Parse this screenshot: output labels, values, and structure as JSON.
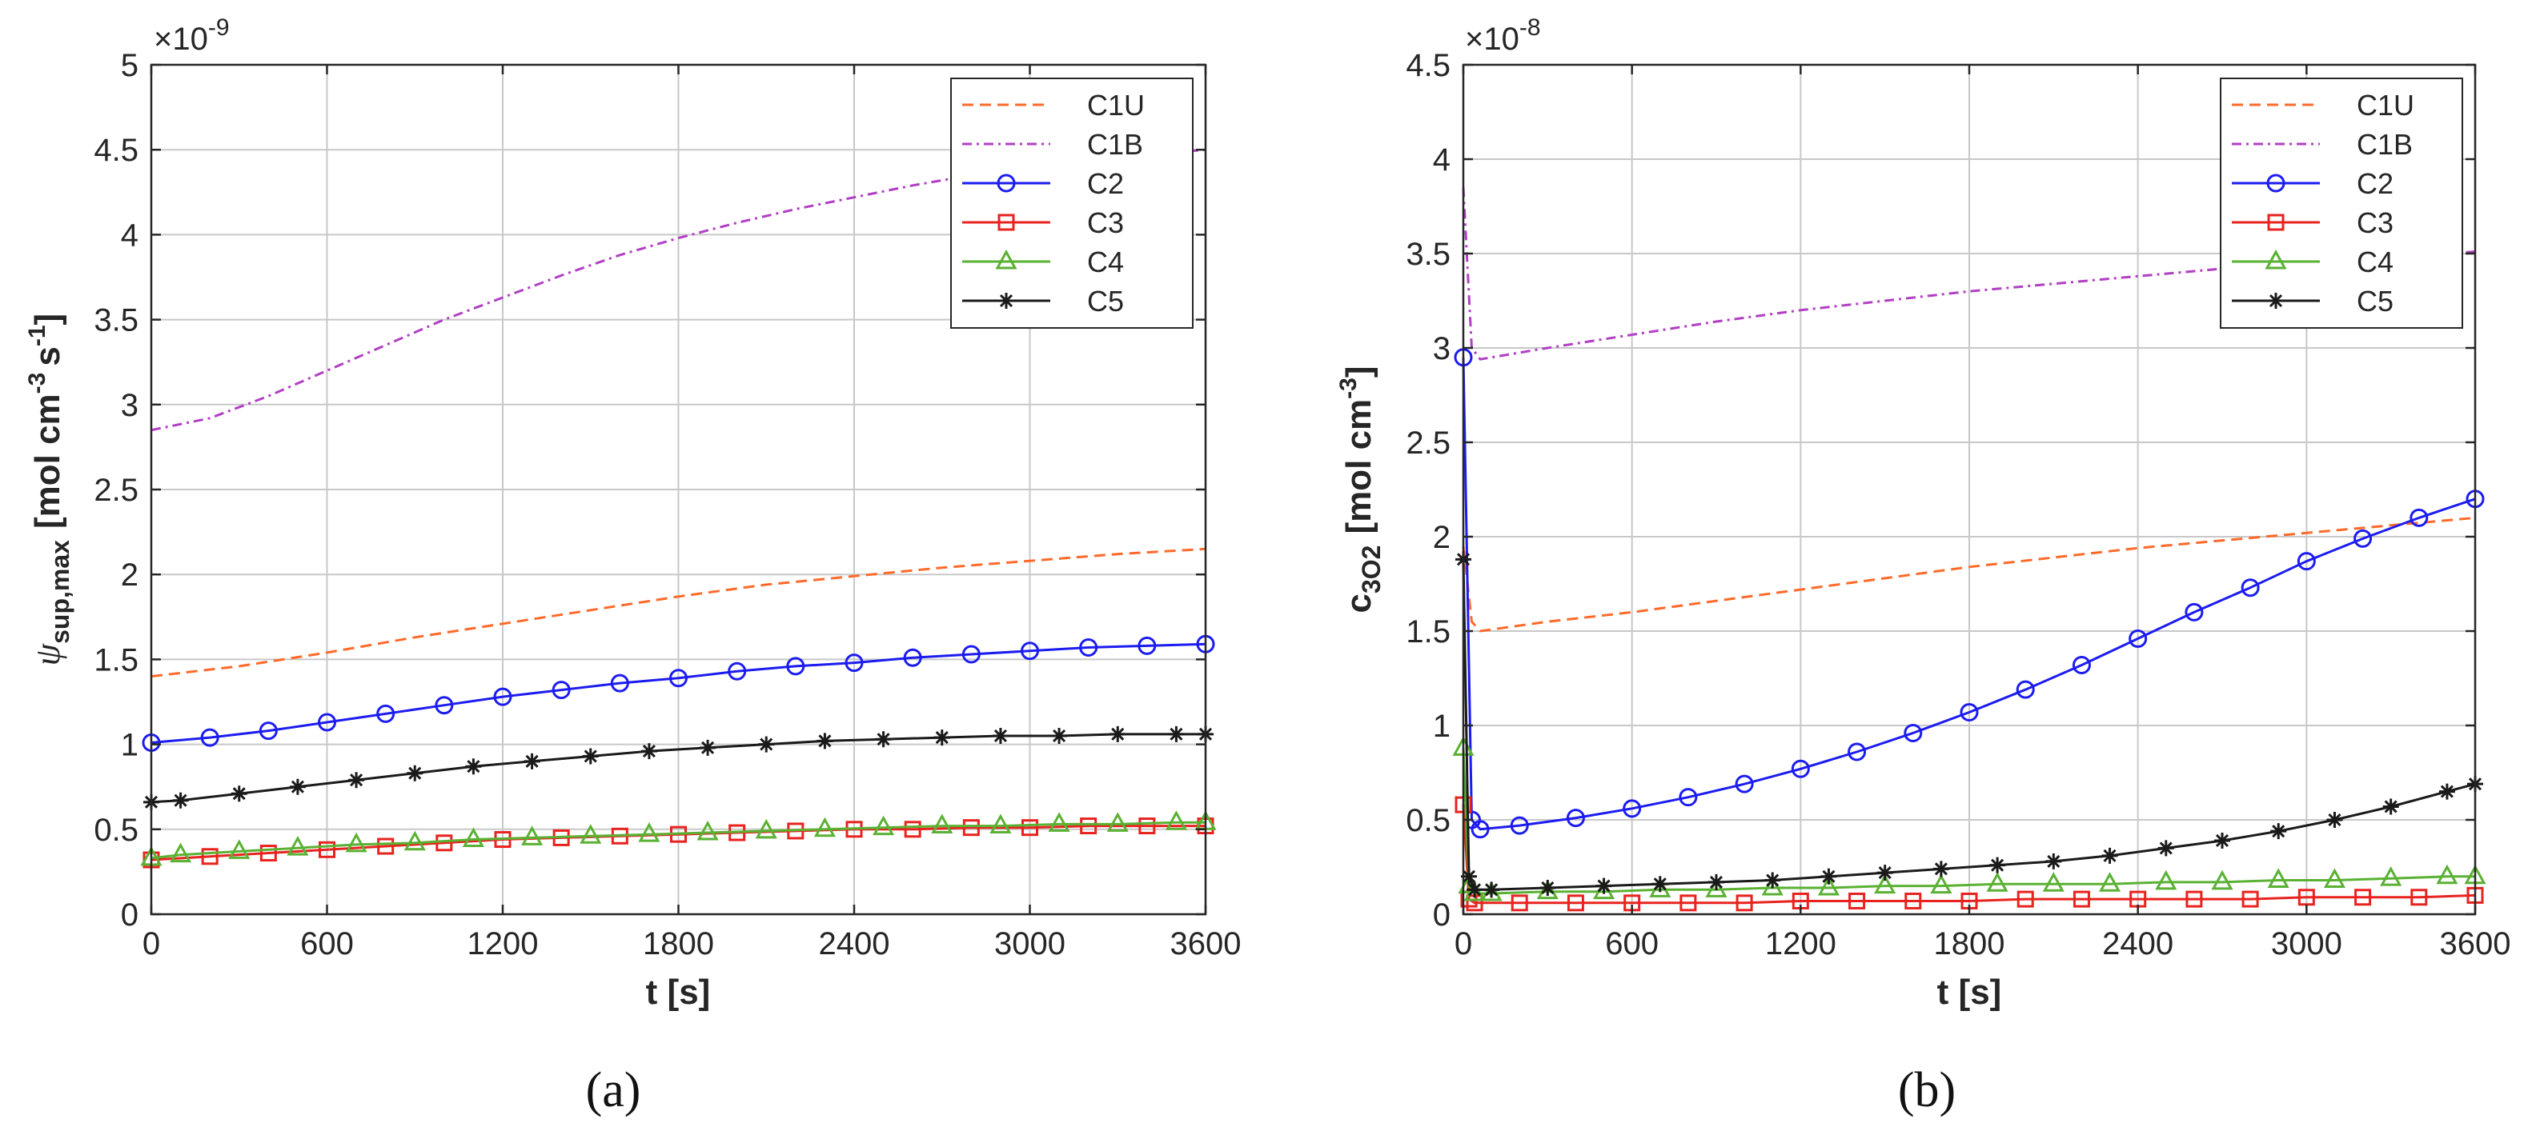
{
  "figure": {
    "panel_labels": [
      "(a)",
      "(b)"
    ]
  },
  "chart_data": [
    {
      "type": "line",
      "panel": "(a)",
      "title": "",
      "xlabel": "t [s]",
      "ylabel_symbol": "ψ",
      "ylabel_sub": "sup,max",
      "ylabel_main": "[mol cm",
      "ylabel_exp1": "-3",
      "ylabel_mid": "s",
      "ylabel_exp2": "-1",
      "ylabel_end": "]",
      "multiplier_base": "×10",
      "multiplier_exp": "-9",
      "xlim": [
        0,
        3600
      ],
      "ylim": [
        0,
        5
      ],
      "xticks": [
        0,
        600,
        1200,
        1800,
        2400,
        3000,
        3600
      ],
      "xtick_labels": [
        "0",
        "600",
        "1200",
        "1800",
        "2400",
        "3000",
        "3600"
      ],
      "yticks": [
        0,
        0.5,
        1,
        1.5,
        2,
        2.5,
        3,
        3.5,
        4,
        4.5,
        5
      ],
      "ytick_labels": [
        "0",
        "0.5",
        "1",
        "1.5",
        "2",
        "2.5",
        "3",
        "3.5",
        "4",
        "4.5",
        "5"
      ],
      "grid": true,
      "legend": "top-right",
      "series": [
        {
          "name": "C1U",
          "color": "#ff6a2a",
          "style": "dashed",
          "marker": "none",
          "x": [
            0,
            300,
            600,
            900,
            1200,
            1500,
            1800,
            2100,
            2400,
            2700,
            3000,
            3300,
            3600
          ],
          "y": [
            1.4,
            1.46,
            1.54,
            1.63,
            1.71,
            1.79,
            1.87,
            1.94,
            1.99,
            2.04,
            2.08,
            2.12,
            2.15
          ]
        },
        {
          "name": "C1B",
          "color": "#b13fc4",
          "style": "dashdot",
          "marker": "none",
          "x": [
            0,
            200,
            400,
            600,
            800,
            1000,
            1200,
            1400,
            1600,
            1800,
            2000,
            2200,
            2400,
            2600,
            2800,
            3000,
            3200,
            3400,
            3600
          ],
          "y": [
            2.85,
            2.92,
            3.05,
            3.2,
            3.35,
            3.5,
            3.63,
            3.76,
            3.88,
            3.98,
            4.07,
            4.15,
            4.22,
            4.29,
            4.35,
            4.4,
            4.44,
            4.47,
            4.5
          ]
        },
        {
          "name": "C2",
          "color": "#1c1cf0",
          "style": "solid",
          "marker": "circle",
          "x": [
            0,
            200,
            400,
            600,
            800,
            1000,
            1200,
            1400,
            1600,
            1800,
            2000,
            2200,
            2400,
            2600,
            2800,
            3000,
            3200,
            3400,
            3600
          ],
          "y": [
            1.01,
            1.04,
            1.08,
            1.13,
            1.18,
            1.23,
            1.28,
            1.32,
            1.36,
            1.39,
            1.43,
            1.46,
            1.48,
            1.51,
            1.53,
            1.55,
            1.57,
            1.58,
            1.59
          ]
        },
        {
          "name": "C3",
          "color": "#e8231f",
          "style": "solid",
          "marker": "square",
          "x": [
            0,
            200,
            400,
            600,
            800,
            1000,
            1200,
            1400,
            1600,
            1800,
            2000,
            2200,
            2400,
            2600,
            2800,
            3000,
            3200,
            3400,
            3600
          ],
          "y": [
            0.32,
            0.34,
            0.36,
            0.38,
            0.4,
            0.42,
            0.44,
            0.45,
            0.46,
            0.47,
            0.48,
            0.49,
            0.5,
            0.5,
            0.51,
            0.51,
            0.52,
            0.52,
            0.52
          ]
        },
        {
          "name": "C4",
          "color": "#5ab133",
          "style": "solid",
          "marker": "triangle",
          "x": [
            0,
            100,
            300,
            500,
            700,
            900,
            1100,
            1300,
            1500,
            1700,
            1900,
            2100,
            2300,
            2500,
            2700,
            2900,
            3100,
            3300,
            3500,
            3600
          ],
          "y": [
            0.33,
            0.35,
            0.37,
            0.39,
            0.41,
            0.42,
            0.44,
            0.45,
            0.46,
            0.47,
            0.48,
            0.49,
            0.5,
            0.51,
            0.52,
            0.52,
            0.53,
            0.53,
            0.54,
            0.54
          ]
        },
        {
          "name": "C5",
          "color": "#1a1a1a",
          "style": "solid",
          "marker": "star",
          "x": [
            0,
            100,
            300,
            500,
            700,
            900,
            1100,
            1300,
            1500,
            1700,
            1900,
            2100,
            2300,
            2500,
            2700,
            2900,
            3100,
            3300,
            3500,
            3600
          ],
          "y": [
            0.66,
            0.67,
            0.71,
            0.75,
            0.79,
            0.83,
            0.87,
            0.9,
            0.93,
            0.96,
            0.98,
            1.0,
            1.02,
            1.03,
            1.04,
            1.05,
            1.05,
            1.06,
            1.06,
            1.06
          ]
        }
      ]
    },
    {
      "type": "line",
      "panel": "(b)",
      "title": "",
      "xlabel": "t [s]",
      "ylabel_main": "c",
      "ylabel_sub": "3O2",
      "ylabel_rest": "[mol cm",
      "ylabel_exp": "-3",
      "ylabel_end": "]",
      "multiplier_base": "×10",
      "multiplier_exp": "-8",
      "xlim": [
        0,
        3600
      ],
      "ylim": [
        0,
        4.5
      ],
      "xticks": [
        0,
        600,
        1200,
        1800,
        2400,
        3000,
        3600
      ],
      "xtick_labels": [
        "0",
        "600",
        "1200",
        "1800",
        "2400",
        "3000",
        "3600"
      ],
      "yticks": [
        0,
        0.5,
        1,
        1.5,
        2,
        2.5,
        3,
        3.5,
        4,
        4.5
      ],
      "ytick_labels": [
        "0",
        "0.5",
        "1",
        "1.5",
        "2",
        "2.5",
        "3",
        "3.5",
        "4",
        "4.5"
      ],
      "grid": true,
      "legend": "top-right",
      "series": [
        {
          "name": "C1U",
          "color": "#ff6a2a",
          "style": "dashed",
          "marker": "none",
          "x": [
            0,
            30,
            60,
            300,
            600,
            900,
            1200,
            1500,
            1800,
            2100,
            2400,
            2700,
            3000,
            3300,
            3600
          ],
          "y": [
            1.95,
            1.55,
            1.5,
            1.55,
            1.6,
            1.66,
            1.72,
            1.78,
            1.84,
            1.89,
            1.94,
            1.98,
            2.02,
            2.06,
            2.1
          ]
        },
        {
          "name": "C1B",
          "color": "#b13fc4",
          "style": "dashdot",
          "marker": "none",
          "x": [
            0,
            30,
            60,
            300,
            600,
            900,
            1200,
            1500,
            1800,
            2100,
            2400,
            2700,
            3000,
            3300,
            3600
          ],
          "y": [
            3.85,
            3.0,
            2.94,
            3.0,
            3.07,
            3.14,
            3.2,
            3.25,
            3.3,
            3.34,
            3.38,
            3.42,
            3.45,
            3.48,
            3.51
          ]
        },
        {
          "name": "C2",
          "color": "#1c1cf0",
          "style": "solid",
          "marker": "circle",
          "x": [
            0,
            30,
            60,
            200,
            400,
            600,
            800,
            1000,
            1200,
            1400,
            1600,
            1800,
            2000,
            2200,
            2400,
            2600,
            2800,
            3000,
            3200,
            3400,
            3600
          ],
          "y": [
            2.95,
            0.5,
            0.45,
            0.47,
            0.51,
            0.56,
            0.62,
            0.69,
            0.77,
            0.86,
            0.96,
            1.07,
            1.19,
            1.32,
            1.46,
            1.6,
            1.73,
            1.87,
            1.99,
            2.1,
            2.2
          ]
        },
        {
          "name": "C3",
          "color": "#e8231f",
          "style": "solid",
          "marker": "square",
          "x": [
            0,
            20,
            40,
            200,
            400,
            600,
            800,
            1000,
            1200,
            1400,
            1600,
            1800,
            2000,
            2200,
            2400,
            2600,
            2800,
            3000,
            3200,
            3400,
            3600
          ],
          "y": [
            0.58,
            0.08,
            0.06,
            0.06,
            0.06,
            0.06,
            0.06,
            0.06,
            0.07,
            0.07,
            0.07,
            0.07,
            0.08,
            0.08,
            0.08,
            0.08,
            0.08,
            0.09,
            0.09,
            0.09,
            0.1
          ]
        },
        {
          "name": "C4",
          "color": "#5ab133",
          "style": "solid",
          "marker": "triangle",
          "x": [
            0,
            20,
            40,
            100,
            300,
            500,
            700,
            900,
            1100,
            1300,
            1500,
            1700,
            1900,
            2100,
            2300,
            2500,
            2700,
            2900,
            3100,
            3300,
            3500,
            3600
          ],
          "y": [
            0.88,
            0.15,
            0.11,
            0.11,
            0.12,
            0.12,
            0.13,
            0.13,
            0.14,
            0.14,
            0.15,
            0.15,
            0.16,
            0.16,
            0.16,
            0.17,
            0.17,
            0.18,
            0.18,
            0.19,
            0.2,
            0.2
          ]
        },
        {
          "name": "C5",
          "color": "#1a1a1a",
          "style": "solid",
          "marker": "star",
          "x": [
            0,
            20,
            40,
            100,
            300,
            500,
            700,
            900,
            1100,
            1300,
            1500,
            1700,
            1900,
            2100,
            2300,
            2500,
            2700,
            2900,
            3100,
            3300,
            3500,
            3600
          ],
          "y": [
            1.88,
            0.2,
            0.13,
            0.13,
            0.14,
            0.15,
            0.16,
            0.17,
            0.18,
            0.2,
            0.22,
            0.24,
            0.26,
            0.28,
            0.31,
            0.35,
            0.39,
            0.44,
            0.5,
            0.57,
            0.65,
            0.69
          ]
        }
      ]
    }
  ]
}
